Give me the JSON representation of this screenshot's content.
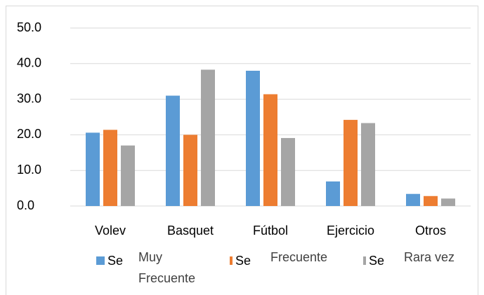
{
  "chart_data": {
    "type": "bar",
    "categories": [
      "Volev",
      "Basquet",
      "Fútbol",
      "Ejercicio",
      "Otros"
    ],
    "series": [
      {
        "name": "Muy Frecuente",
        "legend_text": "Se",
        "color": "#5b9bd5",
        "values": [
          20.6,
          31.0,
          38.0,
          6.9,
          3.4
        ]
      },
      {
        "name": "Frecuente",
        "legend_text": "Se",
        "color": "#ed7d31",
        "values": [
          21.4,
          20.0,
          31.4,
          24.2,
          2.8
        ]
      },
      {
        "name": "Rara vez",
        "legend_text": "Se",
        "color": "#a5a5a5",
        "values": [
          17.0,
          38.3,
          19.1,
          23.3,
          2.1
        ]
      }
    ],
    "ylim": [
      0,
      50
    ],
    "yticks": [
      {
        "value": 0,
        "label": "0.0"
      },
      {
        "value": 10,
        "label": "10.0"
      },
      {
        "value": 20,
        "label": "20.0"
      },
      {
        "value": 30,
        "label": "30.0"
      },
      {
        "value": 40,
        "label": "40.0"
      },
      {
        "value": 50,
        "label": "50.0"
      }
    ],
    "grid": true,
    "legend": "bottom"
  }
}
